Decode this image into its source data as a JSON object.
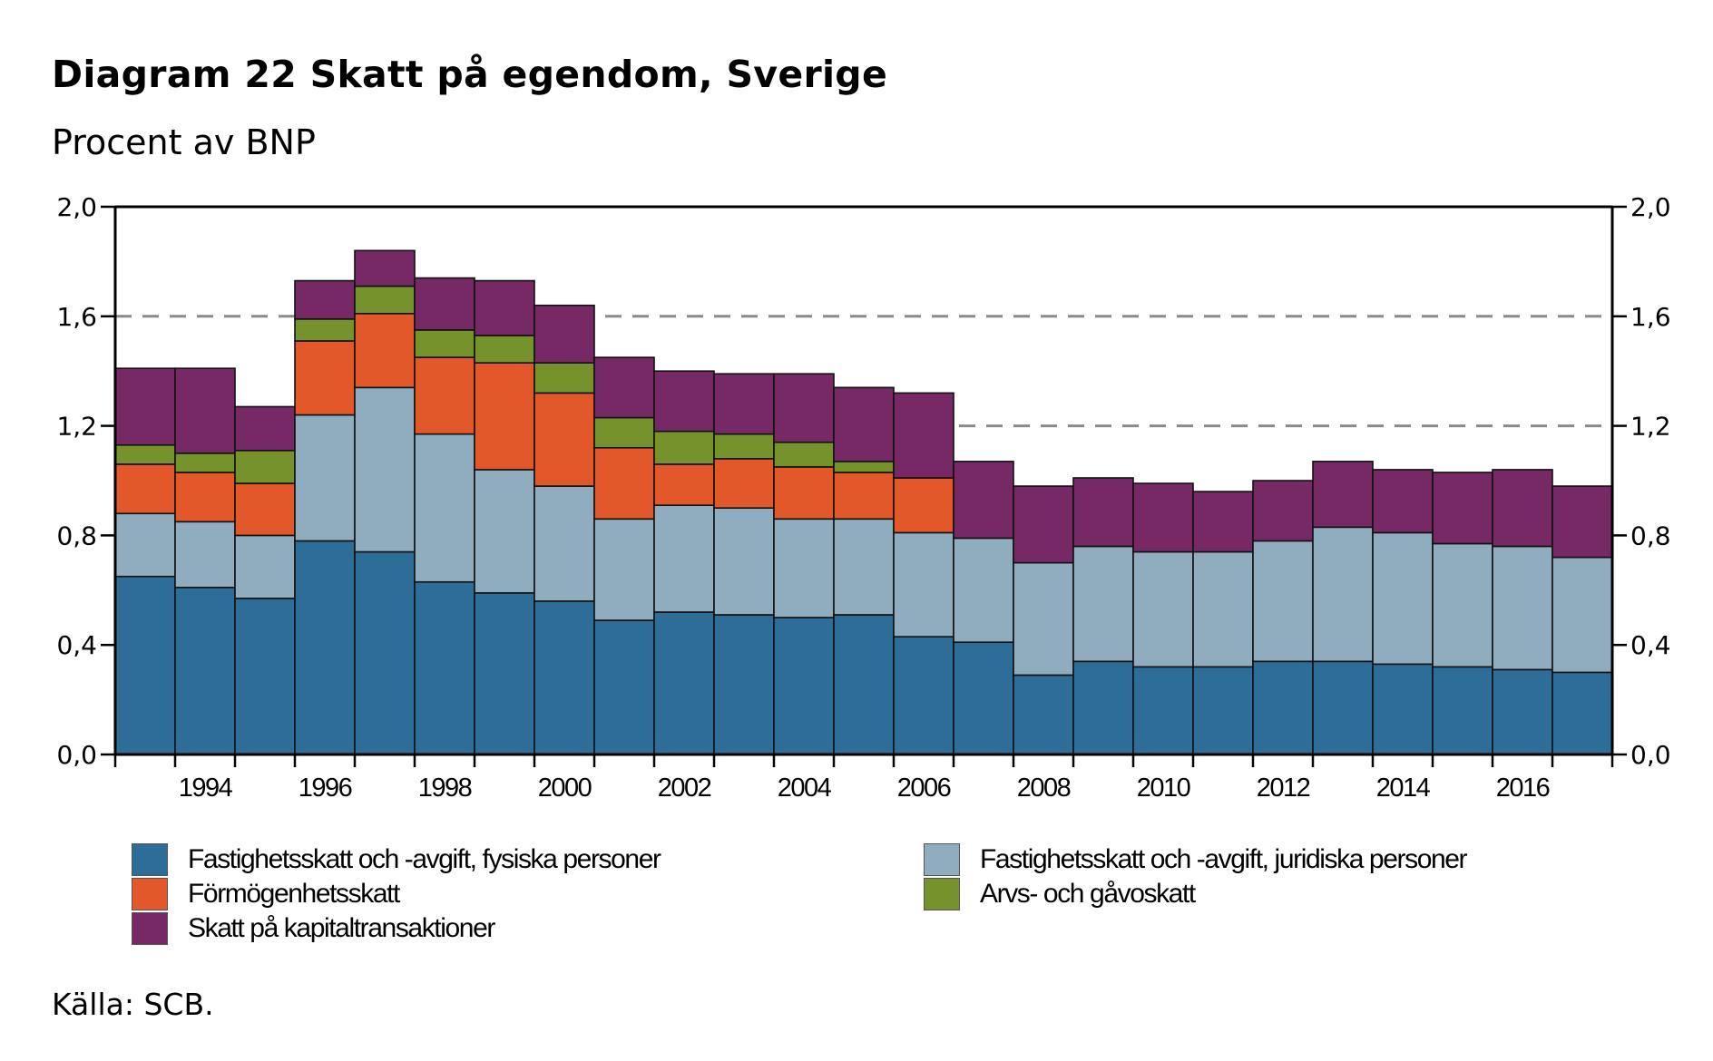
{
  "chart_data": {
    "type": "bar",
    "stacked": true,
    "title": "Diagram 22 Skatt på egendom, Sverige",
    "subtitle": "Procent av BNP",
    "xlabel": "",
    "ylabel": "Procent av BNP",
    "ylim": [
      0,
      2.0
    ],
    "y_ticks": [
      "0,0",
      "0,4",
      "0,8",
      "1,2",
      "1,6",
      "2,0"
    ],
    "y_tick_values": [
      0,
      0.4,
      0.8,
      1.2,
      1.6,
      2.0
    ],
    "y_axis_sides": "left-and-right",
    "gridlines": {
      "style": "dashed",
      "values": [
        1.2,
        1.6
      ]
    },
    "categories": [
      "1993",
      "1994",
      "1995",
      "1996",
      "1997",
      "1998",
      "1999",
      "2000",
      "2001",
      "2002",
      "2003",
      "2004",
      "2005",
      "2006",
      "2007",
      "2008",
      "2009",
      "2010",
      "2011",
      "2012",
      "2013",
      "2014",
      "2015",
      "2016",
      "2017"
    ],
    "x_tick_labels": [
      "1994",
      "1996",
      "1998",
      "2000",
      "2002",
      "2004",
      "2006",
      "2008",
      "2010",
      "2012",
      "2014",
      "2016"
    ],
    "series": [
      {
        "name": "Fastighetsskatt och -avgift, fysiska personer",
        "color": "#2F6D99",
        "values": [
          0.65,
          0.61,
          0.57,
          0.78,
          0.74,
          0.63,
          0.59,
          0.56,
          0.49,
          0.52,
          0.51,
          0.5,
          0.51,
          0.43,
          0.41,
          0.29,
          0.34,
          0.32,
          0.32,
          0.34,
          0.34,
          0.33,
          0.32,
          0.31,
          0.3
        ]
      },
      {
        "name": "Fastighetsskatt och -avgift, juridiska personer",
        "color": "#8FADBE",
        "values": [
          0.23,
          0.24,
          0.23,
          0.46,
          0.6,
          0.54,
          0.45,
          0.42,
          0.37,
          0.39,
          0.39,
          0.36,
          0.35,
          0.38,
          0.38,
          0.41,
          0.42,
          0.42,
          0.42,
          0.44,
          0.49,
          0.48,
          0.45,
          0.45,
          0.42
        ]
      },
      {
        "name": "Förmögenhetsskatt",
        "color": "#E2582A",
        "values": [
          0.18,
          0.18,
          0.19,
          0.27,
          0.27,
          0.28,
          0.39,
          0.34,
          0.26,
          0.15,
          0.18,
          0.19,
          0.17,
          0.2,
          0,
          0,
          0,
          0,
          0,
          0,
          0,
          0,
          0,
          0,
          0
        ]
      },
      {
        "name": "Arvs- och gåvoskatt",
        "color": "#76922C",
        "values": [
          0.07,
          0.07,
          0.12,
          0.08,
          0.1,
          0.1,
          0.1,
          0.11,
          0.11,
          0.12,
          0.09,
          0.09,
          0.04,
          0,
          0,
          0,
          0,
          0,
          0,
          0,
          0,
          0,
          0,
          0,
          0
        ]
      },
      {
        "name": "Skatt på kapitaltransaktioner",
        "color": "#772966",
        "values": [
          0.28,
          0.31,
          0.16,
          0.14,
          0.13,
          0.19,
          0.2,
          0.21,
          0.22,
          0.22,
          0.22,
          0.25,
          0.27,
          0.31,
          0.28,
          0.28,
          0.25,
          0.25,
          0.22,
          0.22,
          0.24,
          0.23,
          0.26,
          0.28,
          0.26
        ]
      }
    ],
    "legend_position": "bottom",
    "source": "Källa: SCB."
  },
  "legend": [
    {
      "label": "Fastighetsskatt och -avgift, fysiska personer",
      "color": "#2F6D99"
    },
    {
      "label": "Fastighetsskatt och -avgift, juridiska personer",
      "color": "#8FADBE"
    },
    {
      "label": "Förmögenhetsskatt",
      "color": "#E2582A"
    },
    {
      "label": "Arvs- och gåvoskatt",
      "color": "#76922C"
    },
    {
      "label": "Skatt på kapitaltransaktioner",
      "color": "#772966"
    }
  ]
}
